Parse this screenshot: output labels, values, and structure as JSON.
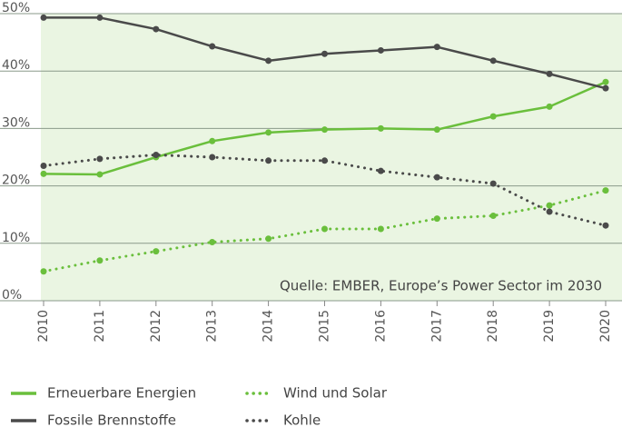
{
  "chart_data": {
    "type": "line",
    "categories": [
      "2010",
      "2011",
      "2012",
      "2013",
      "2014",
      "2015",
      "2016",
      "2017",
      "2018",
      "2019",
      "2020"
    ],
    "series": [
      {
        "name": "Erneuerbare Energien",
        "color": "#6abf3c",
        "dash": "solid",
        "values": [
          22.1,
          22.0,
          25.0,
          27.8,
          29.3,
          29.8,
          30.0,
          29.8,
          32.1,
          33.8,
          38.1
        ]
      },
      {
        "name": "Fossile Brennstoffe",
        "color": "#4a4a4a",
        "dash": "solid",
        "values": [
          49.3,
          49.3,
          47.3,
          44.3,
          41.8,
          43.0,
          43.6,
          44.2,
          41.8,
          39.5,
          37.0
        ]
      },
      {
        "name": "Wind und Solar",
        "color": "#6abf3c",
        "dash": "dotted",
        "values": [
          5.1,
          7.0,
          8.6,
          10.2,
          10.8,
          12.5,
          12.5,
          14.3,
          14.8,
          16.6,
          19.2
        ]
      },
      {
        "name": "Kohle",
        "color": "#4a4a4a",
        "dash": "dotted",
        "values": [
          23.5,
          24.7,
          25.4,
          25.0,
          24.4,
          24.4,
          22.6,
          21.5,
          20.4,
          15.5,
          13.1
        ]
      }
    ],
    "ylim": [
      0,
      50
    ],
    "yticks": [
      {
        "value": 0,
        "label": "0%"
      },
      {
        "value": 10,
        "label": "10%"
      },
      {
        "value": 20,
        "label": "20%"
      },
      {
        "value": 30,
        "label": "30%"
      },
      {
        "value": 40,
        "label": "40%"
      },
      {
        "value": 50,
        "label": "50%"
      }
    ],
    "annotation": "Quelle: EMBER, Europe’s Power Sector im 2030",
    "grid": true
  }
}
